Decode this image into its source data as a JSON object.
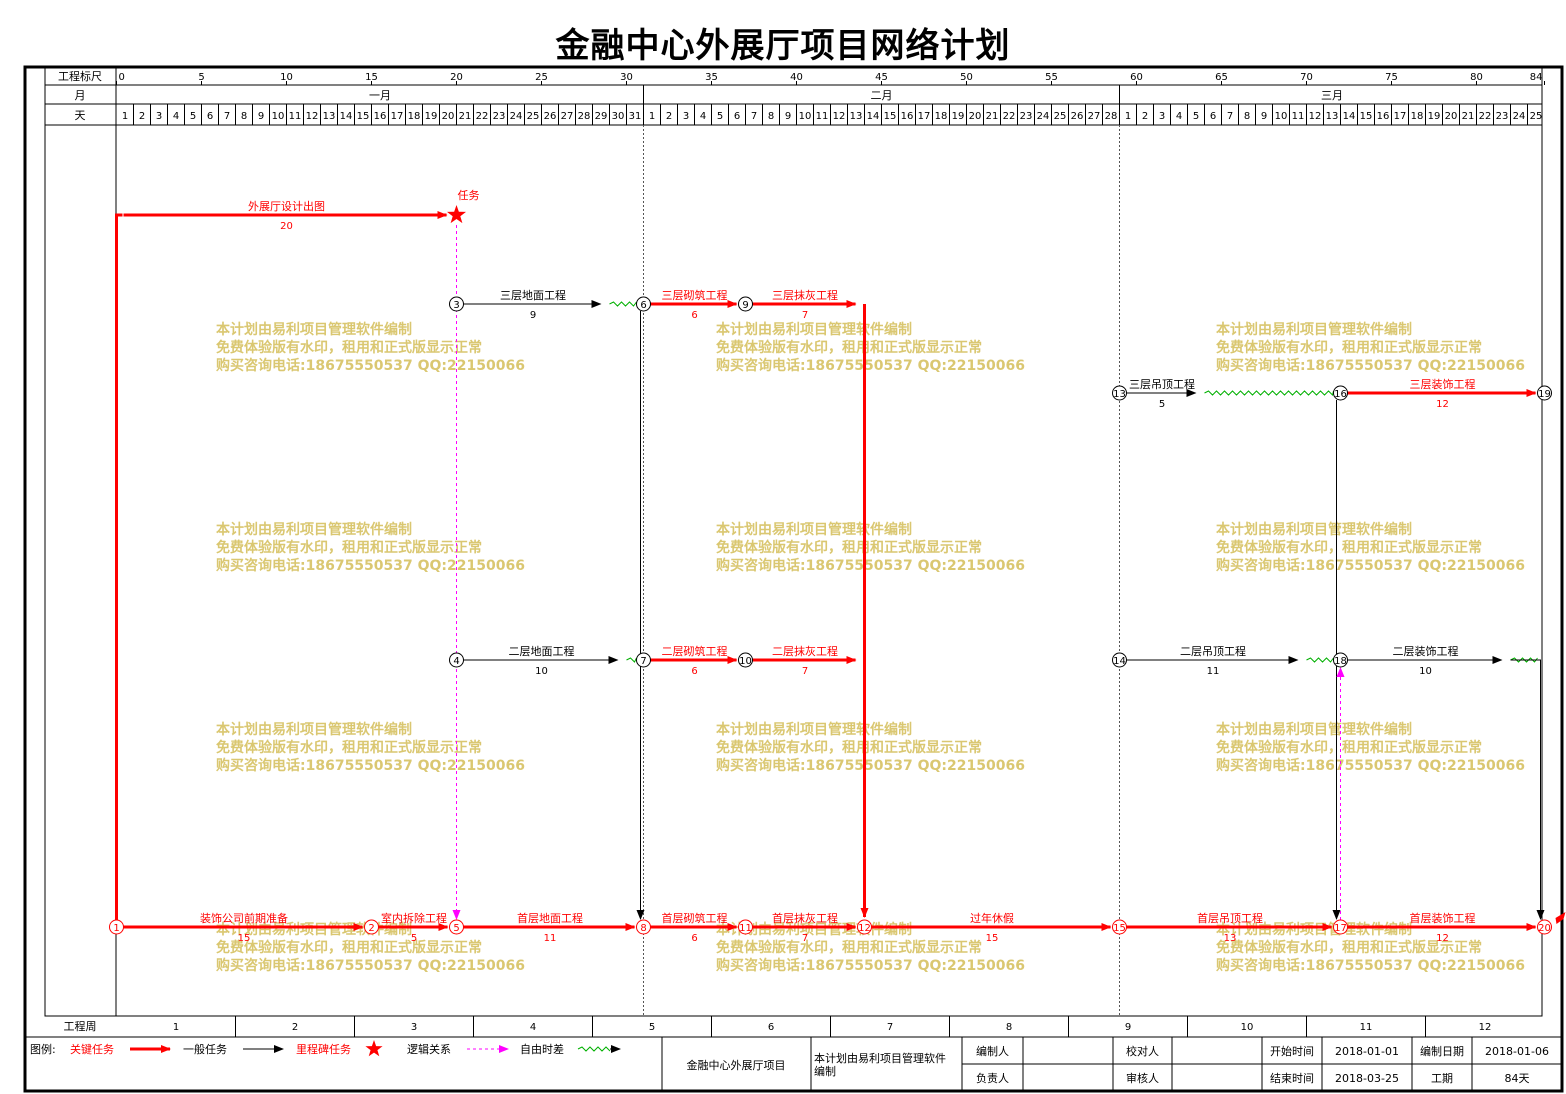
{
  "title": "金融中心外展厅项目网络计划",
  "header": {
    "scale_label": "工程标尺",
    "month_label": "月",
    "day_label": "天",
    "scale_ticks": [
      "0",
      "5",
      "10",
      "15",
      "20",
      "25",
      "30",
      "35",
      "40",
      "45",
      "50",
      "55",
      "60",
      "65",
      "70",
      "75",
      "80",
      "84"
    ],
    "months": [
      {
        "name": "一月",
        "start": 0,
        "days": 31
      },
      {
        "name": "二月",
        "start": 31,
        "days": 28
      },
      {
        "name": "三月",
        "start": 59,
        "days": 25
      }
    ]
  },
  "week_row": {
    "label": "工程周",
    "weeks": [
      "1",
      "2",
      "3",
      "4",
      "5",
      "6",
      "7",
      "8",
      "9",
      "10",
      "11",
      "12"
    ]
  },
  "nodes": [
    {
      "id": "1",
      "t": 0,
      "row": "r1",
      "critical": true
    },
    {
      "id": "2",
      "t": 15,
      "row": "r1",
      "critical": true
    },
    {
      "id": "5",
      "t": 20,
      "row": "r1",
      "critical": true
    },
    {
      "id": "8",
      "t": 31,
      "row": "r1",
      "critical": true
    },
    {
      "id": "11",
      "t": 37,
      "row": "r1",
      "critical": true
    },
    {
      "id": "12",
      "t": 44,
      "row": "r1",
      "critical": true
    },
    {
      "id": "15",
      "t": 59,
      "row": "r1",
      "critical": true
    },
    {
      "id": "17",
      "t": 72,
      "row": "r1",
      "critical": true
    },
    {
      "id": "20",
      "t": 84,
      "row": "r1",
      "critical": true
    },
    {
      "id": "3",
      "t": 20,
      "row": "r3",
      "critical": false
    },
    {
      "id": "6",
      "t": 31,
      "row": "r3",
      "critical": false
    },
    {
      "id": "9",
      "t": 37,
      "row": "r3",
      "critical": false
    },
    {
      "id": "13",
      "t": 59,
      "row": "r4",
      "critical": false
    },
    {
      "id": "16",
      "t": 72,
      "row": "r4",
      "critical": false
    },
    {
      "id": "19",
      "t": 84,
      "row": "r4",
      "critical": false
    },
    {
      "id": "4",
      "t": 20,
      "row": "r2",
      "critical": false
    },
    {
      "id": "7",
      "t": 31,
      "row": "r2",
      "critical": false
    },
    {
      "id": "10",
      "t": 37,
      "row": "r2",
      "critical": false
    },
    {
      "id": "14",
      "t": 59,
      "row": "r2",
      "critical": false
    },
    {
      "id": "18",
      "t": 72,
      "row": "r2",
      "critical": false
    }
  ],
  "tasks": [
    {
      "name": "外展厅设计出图",
      "dur": "20",
      "from": 0,
      "to": 20,
      "row": "r5",
      "critical": true
    },
    {
      "name": "装饰公司前期准备",
      "dur": "15",
      "from": 0,
      "to": 15,
      "row": "r1",
      "critical": true
    },
    {
      "name": "室内拆除工程",
      "dur": "5",
      "from": 15,
      "to": 20,
      "row": "r1",
      "critical": true
    },
    {
      "name": "首层地面工程",
      "dur": "11",
      "from": 20,
      "to": 31,
      "row": "r1",
      "critical": true
    },
    {
      "name": "首层砌筑工程",
      "dur": "6",
      "from": 31,
      "to": 37,
      "row": "r1",
      "critical": true
    },
    {
      "name": "首层抹灰工程",
      "dur": "7",
      "from": 37,
      "to": 44,
      "row": "r1",
      "critical": true
    },
    {
      "name": "过年休假",
      "dur": "15",
      "from": 44,
      "to": 59,
      "row": "r1",
      "critical": true
    },
    {
      "name": "首层吊顶工程",
      "dur": "13",
      "from": 59,
      "to": 72,
      "row": "r1",
      "critical": true
    },
    {
      "name": "首层装饰工程",
      "dur": "12",
      "from": 72,
      "to": 84,
      "row": "r1",
      "critical": true
    },
    {
      "name": "三层地面工程",
      "dur": "9",
      "from": 20,
      "to": 29,
      "row": "r3",
      "critical": false
    },
    {
      "name": "三层砌筑工程",
      "dur": "6",
      "from": 31,
      "to": 37,
      "row": "r3",
      "critical": true
    },
    {
      "name": "三层抹灰工程",
      "dur": "7",
      "from": 37,
      "to": 44,
      "row": "r3",
      "critical": true
    },
    {
      "name": "三层吊顶工程",
      "dur": "5",
      "from": 59,
      "to": 64,
      "row": "r4",
      "critical": false
    },
    {
      "name": "三层装饰工程",
      "dur": "12",
      "from": 72,
      "to": 84,
      "row": "r4",
      "critical": true
    },
    {
      "name": "二层地面工程",
      "dur": "10",
      "from": 20,
      "to": 30,
      "row": "r2",
      "critical": false
    },
    {
      "name": "二层砌筑工程",
      "dur": "6",
      "from": 31,
      "to": 37,
      "row": "r2",
      "critical": true
    },
    {
      "name": "二层抹灰工程",
      "dur": "7",
      "from": 37,
      "to": 44,
      "row": "r2",
      "critical": true
    },
    {
      "name": "二层吊顶工程",
      "dur": "11",
      "from": 59,
      "to": 70,
      "row": "r2",
      "critical": false
    },
    {
      "name": "二层装饰工程",
      "dur": "10",
      "from": 72,
      "to": 82,
      "row": "r2",
      "critical": false
    }
  ],
  "milestone": {
    "name": "任务",
    "t": 20
  },
  "watermark": [
    "本计划由易利项目管理软件编制",
    "免费体验版有水印，租用和正式版显示正常",
    "购买咨询电话:18675550537 QQ:22150066"
  ],
  "legend": {
    "prefix": "图例:",
    "critical": "关键任务",
    "normal": "一般任务",
    "milestone": "里程碑任务",
    "logic": "逻辑关系",
    "float": "自由时差"
  },
  "footer": {
    "project": "金融中心外展厅项目",
    "note": "本计划由易利项目管理软件编制",
    "editor_label": "编制人",
    "checker_label": "校对人",
    "owner_label": "负责人",
    "reviewer_label": "审核人",
    "start_label": "开始时间",
    "start": "2018-01-01",
    "end_label": "结束时间",
    "end": "2018-03-25",
    "made_label": "编制日期",
    "made": "2018-01-06",
    "period_label": "工期",
    "period": "84天"
  },
  "colors": {
    "critical": "#ff0000",
    "normal": "#000000",
    "logic": "#ff00ff",
    "float": "#00b000",
    "watermark": "#d9c56a"
  }
}
